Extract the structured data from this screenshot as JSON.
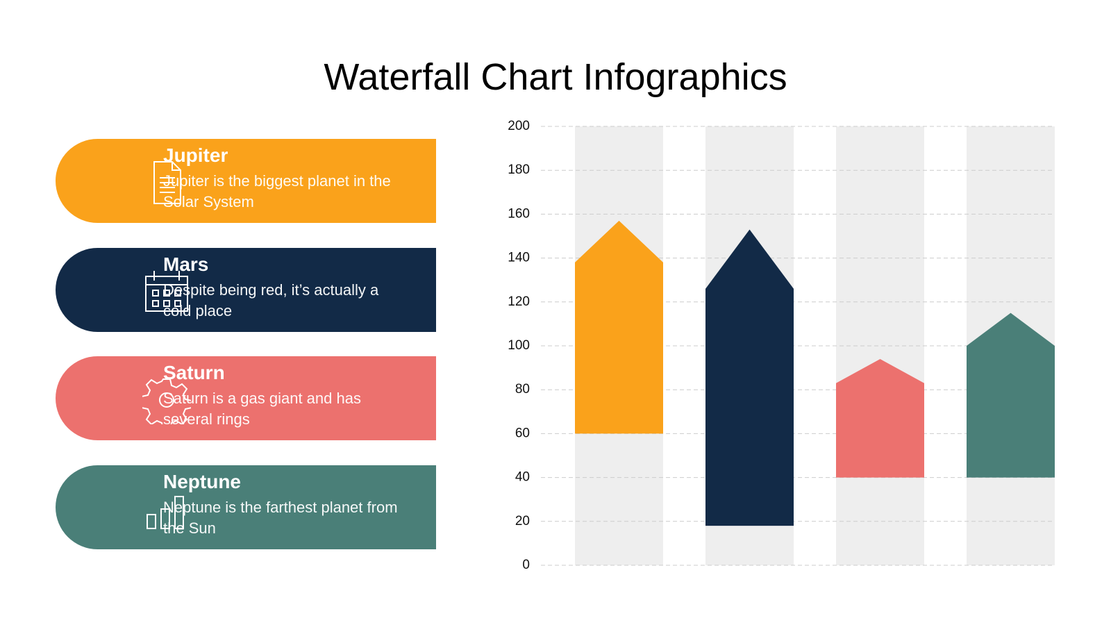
{
  "chart_data": {
    "type": "waterfall",
    "title": "Waterfall Chart Infographics",
    "categories": [
      "Jupiter",
      "Mars",
      "Saturn",
      "Neptune"
    ],
    "colors": [
      "#faa21b",
      "#122a47",
      "#ec716e",
      "#4a7f78"
    ],
    "low": [
      60,
      18,
      40,
      40
    ],
    "high": [
      138,
      126,
      83,
      100
    ],
    "peak": [
      157,
      153,
      94,
      115
    ],
    "ylim": [
      0,
      200
    ],
    "yticks": [
      0,
      20,
      40,
      60,
      80,
      100,
      120,
      140,
      160,
      180,
      200
    ],
    "grid": true
  },
  "panels": [
    {
      "description": "Jupiter is the biggest planet in the Solar System"
    },
    {
      "description": "Despite being red, it’s actually a cold place"
    },
    {
      "description": "Saturn is a gas giant and has several rings"
    },
    {
      "description": "Neptune is the farthest planet from the Sun"
    }
  ]
}
